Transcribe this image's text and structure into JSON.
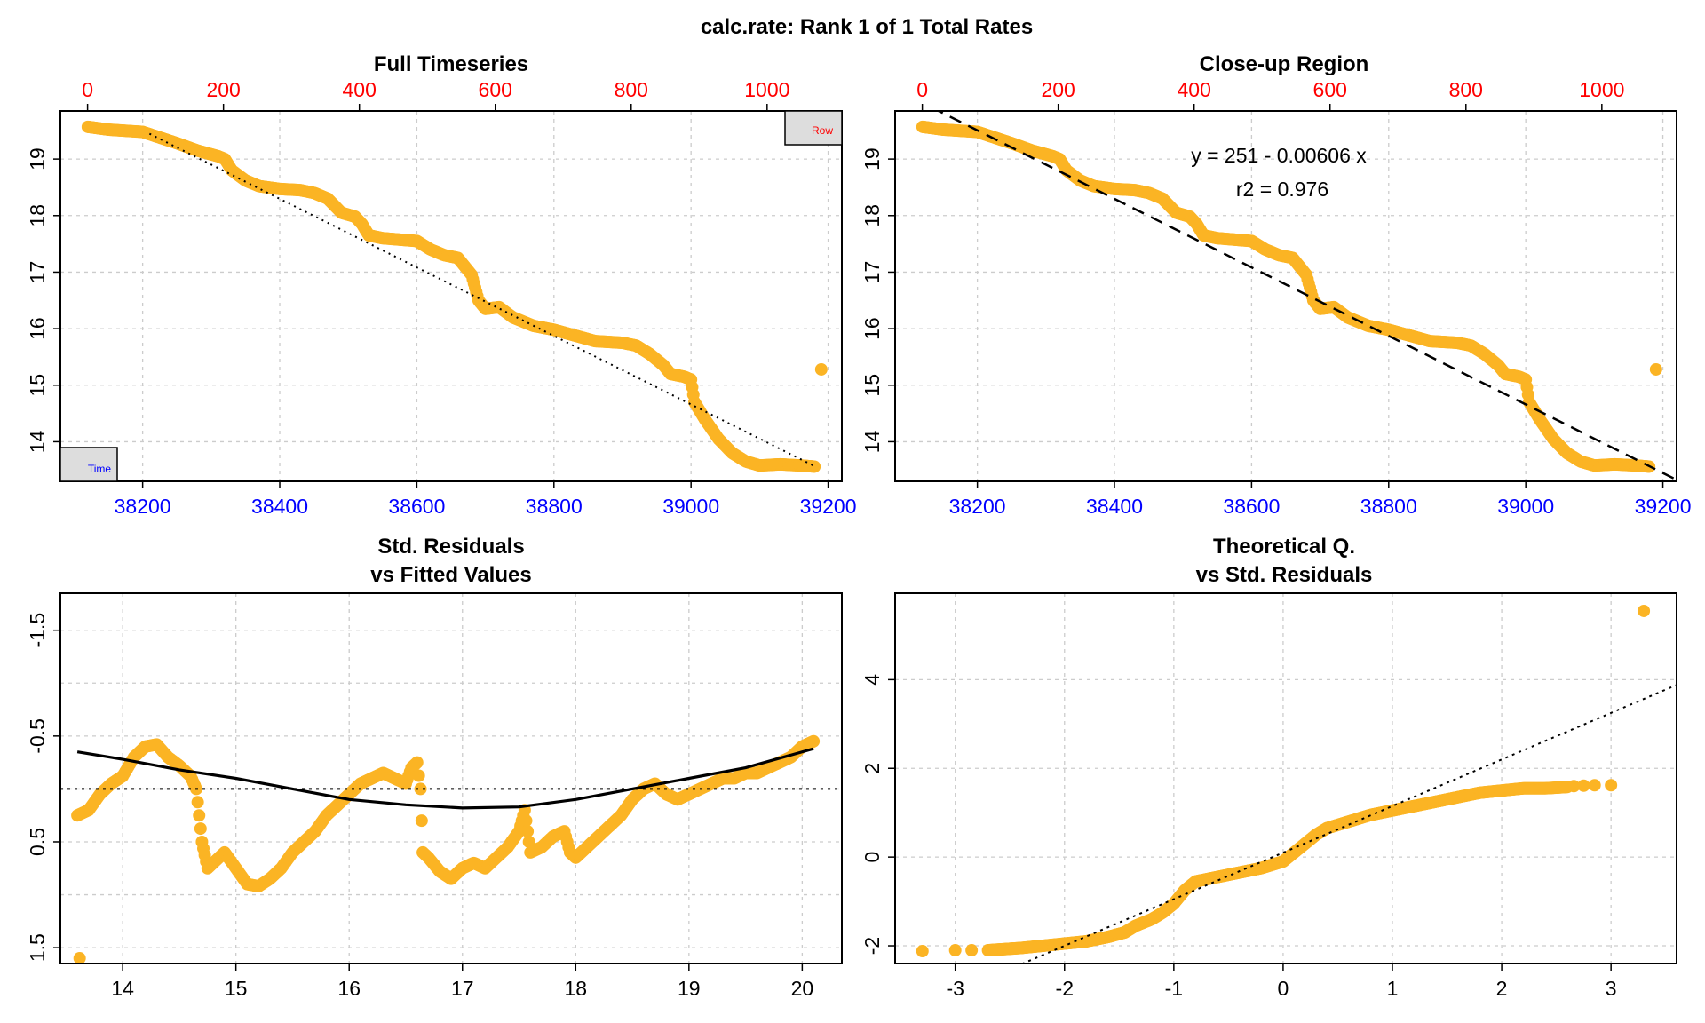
{
  "page": {
    "title": "calc.rate: Rank 1 of 1 Total Rates"
  },
  "colors": {
    "points": "#FBB424",
    "time_axis": "#0000FF",
    "row_axis": "#FF0000",
    "grid": "#CCCCCC",
    "line": "#000000",
    "legend_box": "#DDDDDD"
  },
  "chart_data": [
    {
      "id": "full",
      "type": "scatter",
      "title": "Full Timeseries",
      "xlabel": "",
      "ylabel": "",
      "xlim": [
        38080,
        39220
      ],
      "ylim": [
        13.3,
        19.85
      ],
      "row_lim": [
        -40,
        1110
      ],
      "xticks": [
        "38200",
        "38400",
        "38600",
        "38800",
        "39000",
        "39200"
      ],
      "yticks": [
        "14",
        "15",
        "16",
        "17",
        "18",
        "19"
      ],
      "row_ticks": [
        "0",
        "200",
        "400",
        "600",
        "800",
        "1000"
      ],
      "grid": true,
      "legend": {
        "time_label": "Time",
        "row_label": "Row",
        "time_position": "bottom-left",
        "row_position": "top-right"
      },
      "curve": [
        [
          38120,
          19.57
        ],
        [
          38150,
          19.52
        ],
        [
          38200,
          19.48
        ],
        [
          38220,
          19.4
        ],
        [
          38250,
          19.28
        ],
        [
          38280,
          19.15
        ],
        [
          38310,
          19.05
        ],
        [
          38320,
          19.0
        ],
        [
          38330,
          18.8
        ],
        [
          38350,
          18.62
        ],
        [
          38370,
          18.52
        ],
        [
          38400,
          18.47
        ],
        [
          38430,
          18.45
        ],
        [
          38450,
          18.4
        ],
        [
          38470,
          18.3
        ],
        [
          38490,
          18.05
        ],
        [
          38510,
          17.98
        ],
        [
          38520,
          17.85
        ],
        [
          38530,
          17.65
        ],
        [
          38550,
          17.6
        ],
        [
          38600,
          17.55
        ],
        [
          38620,
          17.4
        ],
        [
          38640,
          17.3
        ],
        [
          38660,
          17.25
        ],
        [
          38670,
          17.1
        ],
        [
          38680,
          16.95
        ],
        [
          38690,
          16.5
        ],
        [
          38700,
          16.35
        ],
        [
          38720,
          16.38
        ],
        [
          38740,
          16.2
        ],
        [
          38770,
          16.05
        ],
        [
          38800,
          15.98
        ],
        [
          38830,
          15.88
        ],
        [
          38860,
          15.78
        ],
        [
          38900,
          15.75
        ],
        [
          38920,
          15.7
        ],
        [
          38940,
          15.55
        ],
        [
          38960,
          15.35
        ],
        [
          38970,
          15.2
        ],
        [
          38990,
          15.15
        ],
        [
          39000,
          15.1
        ],
        [
          39005,
          14.7
        ],
        [
          39020,
          14.4
        ],
        [
          39040,
          14.05
        ],
        [
          39060,
          13.8
        ],
        [
          39080,
          13.65
        ],
        [
          39100,
          13.58
        ],
        [
          39130,
          13.6
        ],
        [
          39160,
          13.58
        ],
        [
          39180,
          13.56
        ]
      ],
      "outlier": [
        39190,
        15.28
      ],
      "fit": {
        "intercept": 251,
        "slope": -0.00606,
        "from": 38210,
        "to": 39180,
        "style": "dotted"
      }
    },
    {
      "id": "closeup",
      "type": "scatter",
      "title": "Close-up Region",
      "xlabel": "",
      "ylabel": "",
      "xlim": [
        38080,
        39220
      ],
      "ylim": [
        13.3,
        19.85
      ],
      "row_lim": [
        -40,
        1110
      ],
      "xticks": [
        "38200",
        "38400",
        "38600",
        "38800",
        "39000",
        "39200"
      ],
      "yticks": [
        "14",
        "15",
        "16",
        "17",
        "18",
        "19"
      ],
      "row_ticks": [
        "0",
        "200",
        "400",
        "600",
        "800",
        "1000"
      ],
      "grid": true,
      "equation": "y = 251 - 0.00606 x",
      "r2": "r2 = 0.976",
      "fit": {
        "intercept": 251,
        "slope": -0.00606,
        "from": 38080,
        "to": 39220,
        "style": "dashed"
      }
    },
    {
      "id": "resid",
      "type": "scatter",
      "title": "Std. Residuals",
      "subtitle": "vs Fitted Values",
      "xlabel": "",
      "ylabel": "",
      "xlim": [
        13.45,
        20.35
      ],
      "ylim": [
        1.65,
        -1.85
      ],
      "xticks": [
        "14",
        "15",
        "16",
        "17",
        "18",
        "19",
        "20"
      ],
      "ytick_values": [
        -1.5,
        -0.5,
        0.5,
        1.5
      ],
      "yticks": [
        "-1.5",
        "-0.5",
        "0.5",
        "1.5"
      ],
      "ygrid_values": [
        -1.5,
        -1.0,
        -0.5,
        0,
        0.5,
        1.0,
        1.5
      ],
      "grid": true,
      "reference_line": 0,
      "curve": [
        [
          13.6,
          0.25
        ],
        [
          13.7,
          0.2
        ],
        [
          13.8,
          0.05
        ],
        [
          13.9,
          -0.05
        ],
        [
          14.0,
          -0.12
        ],
        [
          14.1,
          -0.3
        ],
        [
          14.2,
          -0.4
        ],
        [
          14.3,
          -0.42
        ],
        [
          14.4,
          -0.3
        ],
        [
          14.5,
          -0.22
        ],
        [
          14.6,
          -0.12
        ],
        [
          14.65,
          0.0
        ],
        [
          14.7,
          0.5
        ],
        [
          14.75,
          0.75
        ],
        [
          14.8,
          0.7
        ],
        [
          14.9,
          0.6
        ],
        [
          15.0,
          0.75
        ],
        [
          15.1,
          0.9
        ],
        [
          15.2,
          0.92
        ],
        [
          15.3,
          0.85
        ],
        [
          15.4,
          0.75
        ],
        [
          15.5,
          0.6
        ],
        [
          15.6,
          0.5
        ],
        [
          15.7,
          0.4
        ],
        [
          15.8,
          0.25
        ],
        [
          15.9,
          0.15
        ],
        [
          16.0,
          0.05
        ],
        [
          16.1,
          -0.05
        ],
        [
          16.2,
          -0.1
        ],
        [
          16.3,
          -0.15
        ],
        [
          16.4,
          -0.1
        ],
        [
          16.5,
          -0.05
        ],
        [
          16.55,
          -0.2
        ],
        [
          16.6,
          -0.25
        ],
        [
          16.63,
          0.0
        ],
        [
          16.65,
          0.6
        ],
        [
          16.7,
          0.65
        ],
        [
          16.8,
          0.78
        ],
        [
          16.9,
          0.85
        ],
        [
          17.0,
          0.75
        ],
        [
          17.1,
          0.7
        ],
        [
          17.2,
          0.75
        ],
        [
          17.3,
          0.65
        ],
        [
          17.4,
          0.55
        ],
        [
          17.5,
          0.4
        ],
        [
          17.55,
          0.2
        ],
        [
          17.6,
          0.6
        ],
        [
          17.7,
          0.55
        ],
        [
          17.8,
          0.45
        ],
        [
          17.9,
          0.4
        ],
        [
          17.95,
          0.6
        ],
        [
          18.0,
          0.65
        ],
        [
          18.1,
          0.55
        ],
        [
          18.2,
          0.45
        ],
        [
          18.3,
          0.35
        ],
        [
          18.4,
          0.25
        ],
        [
          18.5,
          0.1
        ],
        [
          18.6,
          0.0
        ],
        [
          18.7,
          -0.05
        ],
        [
          18.8,
          0.05
        ],
        [
          18.9,
          0.1
        ],
        [
          19.0,
          0.05
        ],
        [
          19.1,
          0.0
        ],
        [
          19.2,
          -0.05
        ],
        [
          19.3,
          -0.1
        ],
        [
          19.4,
          -0.1
        ],
        [
          19.5,
          -0.15
        ],
        [
          19.6,
          -0.15
        ],
        [
          19.7,
          -0.2
        ],
        [
          19.8,
          -0.25
        ],
        [
          19.9,
          -0.3
        ],
        [
          20.0,
          -0.4
        ],
        [
          20.1,
          -0.45
        ]
      ],
      "outlier": [
        13.62,
        1.6
      ],
      "smooth": [
        [
          13.6,
          -0.35
        ],
        [
          14.0,
          -0.28
        ],
        [
          14.5,
          -0.18
        ],
        [
          15.0,
          -0.1
        ],
        [
          15.5,
          0.0
        ],
        [
          16.0,
          0.1
        ],
        [
          16.5,
          0.15
        ],
        [
          17.0,
          0.18
        ],
        [
          17.5,
          0.17
        ],
        [
          18.0,
          0.1
        ],
        [
          18.5,
          0.0
        ],
        [
          19.0,
          -0.1
        ],
        [
          19.5,
          -0.2
        ],
        [
          20.1,
          -0.38
        ]
      ]
    },
    {
      "id": "qq",
      "type": "scatter",
      "title": "Theoretical Q.",
      "subtitle": "vs Std. Residuals",
      "xlabel": "",
      "ylabel": "",
      "xlim": [
        -3.55,
        3.6
      ],
      "ylim": [
        -2.4,
        5.95
      ],
      "xticks": [
        "-3",
        "-2",
        "-1",
        "0",
        "1",
        "2",
        "3"
      ],
      "ytick_values": [
        -2,
        0,
        2,
        4
      ],
      "yticks": [
        "-2",
        "0",
        "2",
        "4"
      ],
      "grid": true,
      "curve": [
        [
          -2.7,
          -2.1
        ],
        [
          -2.4,
          -2.05
        ],
        [
          -2.2,
          -2.0
        ],
        [
          -2.0,
          -1.95
        ],
        [
          -1.8,
          -1.9
        ],
        [
          -1.6,
          -1.8
        ],
        [
          -1.45,
          -1.7
        ],
        [
          -1.35,
          -1.55
        ],
        [
          -1.2,
          -1.4
        ],
        [
          -1.1,
          -1.25
        ],
        [
          -1.0,
          -1.05
        ],
        [
          -0.9,
          -0.75
        ],
        [
          -0.8,
          -0.55
        ],
        [
          -0.6,
          -0.45
        ],
        [
          -0.4,
          -0.35
        ],
        [
          -0.2,
          -0.25
        ],
        [
          0.0,
          -0.1
        ],
        [
          0.1,
          0.1
        ],
        [
          0.2,
          0.3
        ],
        [
          0.3,
          0.5
        ],
        [
          0.4,
          0.65
        ],
        [
          0.6,
          0.8
        ],
        [
          0.8,
          0.95
        ],
        [
          1.0,
          1.05
        ],
        [
          1.2,
          1.15
        ],
        [
          1.4,
          1.25
        ],
        [
          1.6,
          1.35
        ],
        [
          1.8,
          1.45
        ],
        [
          2.0,
          1.5
        ],
        [
          2.2,
          1.55
        ],
        [
          2.4,
          1.55
        ],
        [
          2.6,
          1.58
        ]
      ],
      "isolated": [
        [
          -3.3,
          -2.12
        ],
        [
          -3.0,
          -2.1
        ],
        [
          -2.85,
          -2.1
        ],
        [
          2.66,
          1.6
        ],
        [
          2.75,
          1.61
        ],
        [
          2.85,
          1.62
        ],
        [
          3.0,
          1.62
        ],
        [
          3.3,
          5.55
        ]
      ],
      "reference": {
        "intercept": 0.1,
        "slope": 1.05,
        "from": -2.45,
        "to": 3.6,
        "style": "dotted"
      }
    }
  ]
}
